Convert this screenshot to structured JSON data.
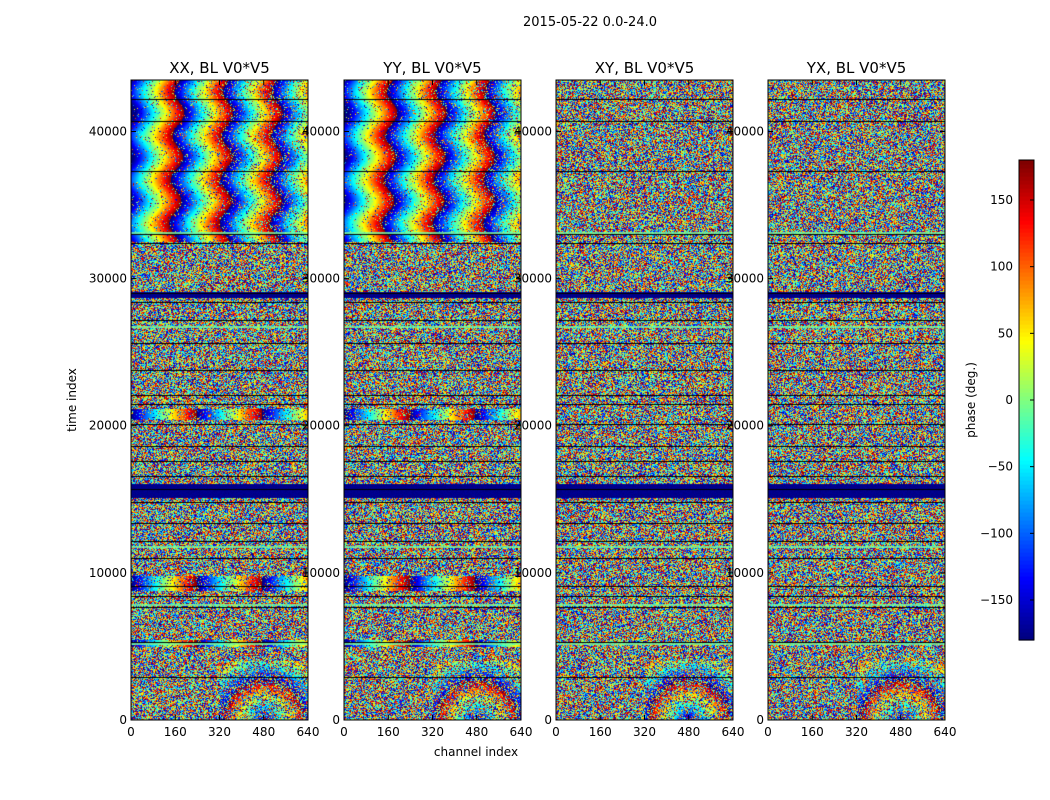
{
  "figure": {
    "suptitle": "2015-05-22 0.0-24.0",
    "xlabel": "channel index",
    "ylabel": "time index"
  },
  "chart_data": {
    "type": "heatmap",
    "panels": [
      {
        "id": "XX",
        "title": "XX, BL V0*V5",
        "fringe": true
      },
      {
        "id": "YY",
        "title": "YY, BL V0*V5",
        "fringe": true
      },
      {
        "id": "XY",
        "title": "XY, BL V0*V5",
        "fringe": false
      },
      {
        "id": "YX",
        "title": "YX, BL V0*V5",
        "fringe": false
      }
    ],
    "x": {
      "label": "channel index",
      "range": [
        0,
        640
      ],
      "ticks": [
        0,
        160,
        320,
        480,
        640
      ],
      "tick_labels": [
        "0",
        "160",
        "320",
        "480",
        "640"
      ]
    },
    "y": {
      "label": "time index",
      "range": [
        0,
        43500
      ],
      "ticks": [
        0,
        10000,
        20000,
        30000,
        40000
      ],
      "tick_labels": [
        "0",
        "10000",
        "20000",
        "30000",
        "40000"
      ]
    },
    "colorbar": {
      "label": "phase (deg.)",
      "range": [
        -180,
        180
      ],
      "ticks": [
        -150,
        -100,
        -50,
        0,
        50,
        100,
        150
      ],
      "tick_labels": [
        "−150",
        "−100",
        "−50",
        "0",
        "50",
        "100",
        "150"
      ],
      "colormap": "jet"
    },
    "features": {
      "scan_boundaries": [
        2900,
        5300,
        7700,
        8400,
        9100,
        11000,
        12200,
        13400,
        14800,
        15700,
        16600,
        17600,
        18600,
        20100,
        21500,
        22100,
        23800,
        25600,
        27200,
        28400,
        29000,
        32400,
        33000,
        37300,
        40700,
        42200
      ],
      "flagged_bands": [
        [
          15100,
          16100
        ],
        [
          28700,
          29100
        ]
      ],
      "xy_fringe_band_top": 32500
    }
  }
}
